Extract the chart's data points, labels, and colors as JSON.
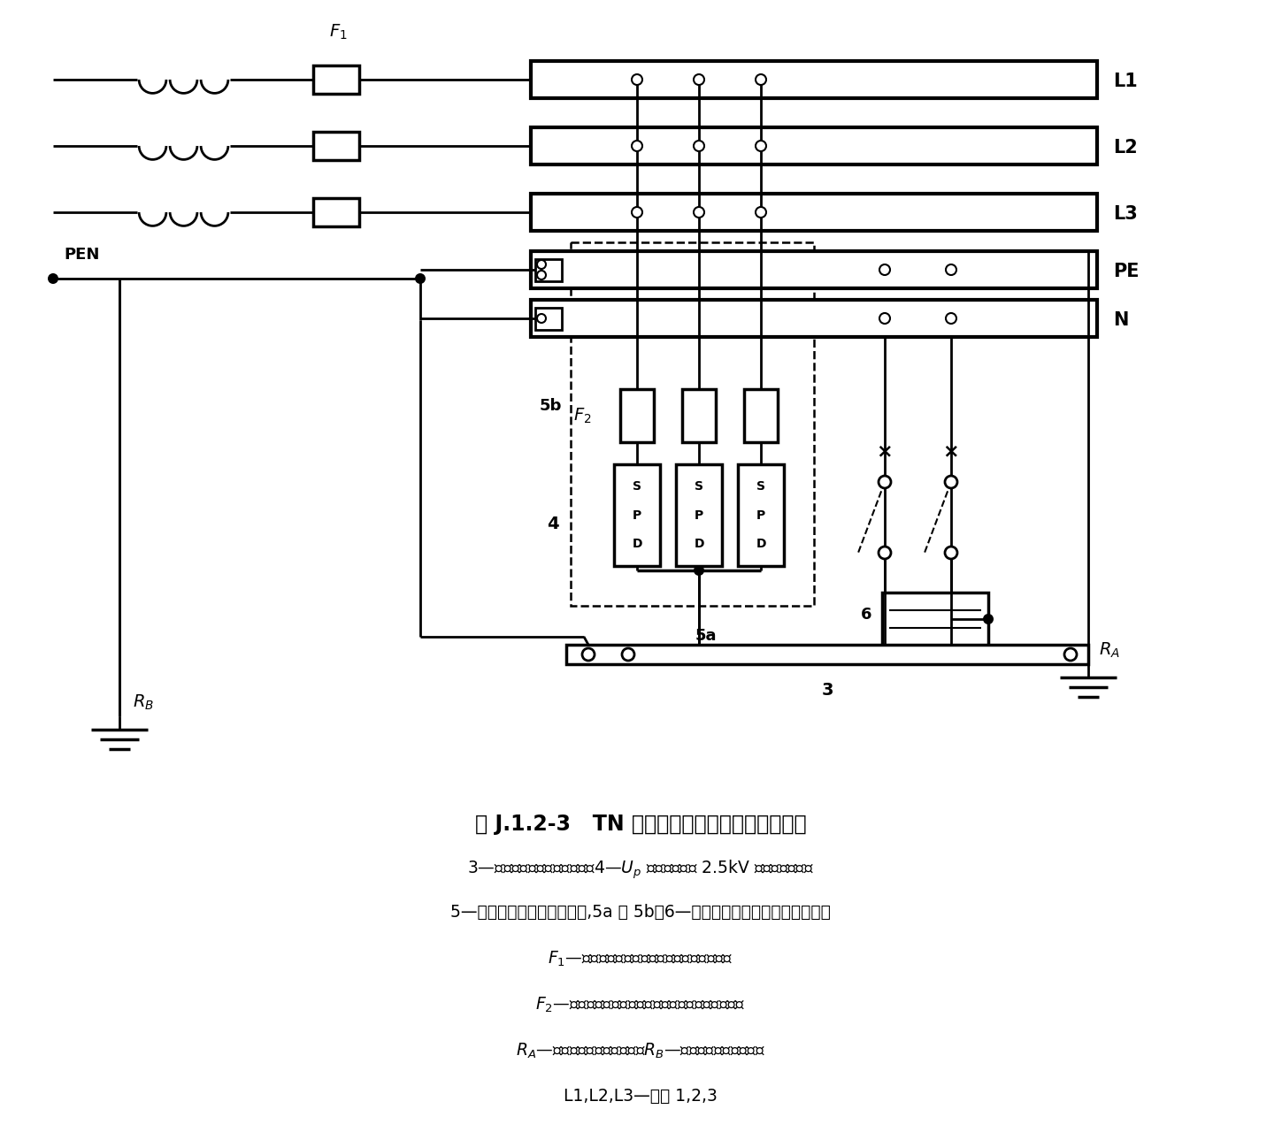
{
  "title": "图 J.1.2-3   TN 系统安装在进户处的电涌保护器",
  "bg_color": "#ffffff",
  "caption_lines": [
    "3—总接地端或总接地连接带；4—$U_p$ 应小于或等于 2.5kV 的电涌保护器；",
    "5—电涌保护器的接地连接线,5a 或 5b；6—需要被电涌保护器保护的设备；",
    "$F_1$—安装在电气装置电源进户处的保护电器；",
    "$F_2$—电涌保护器制造厂要求装设的过电流保护电器；",
    "$R_A$—本电气装置的接地电阻；$R_B$—电源系统的接地电阻；",
    "L1,L2,L3—相线 1,2,3"
  ]
}
